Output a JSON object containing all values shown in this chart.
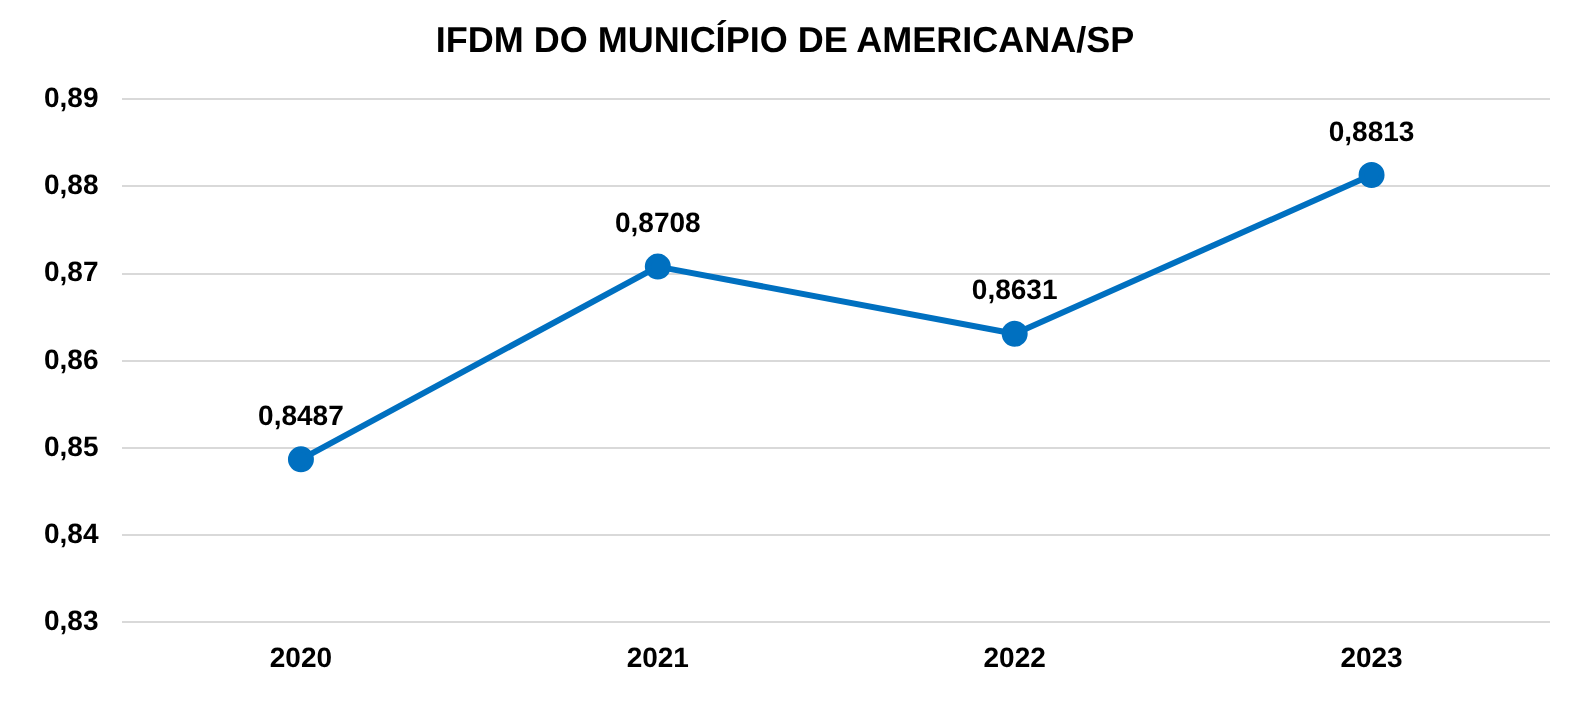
{
  "chart_data": {
    "type": "line",
    "title": "IFDM DO MUNICÍPIO DE AMERICANA/SP",
    "categories": [
      "2020",
      "2021",
      "2022",
      "2023"
    ],
    "series": [
      {
        "color": "#0070c0",
        "values": [
          0.8487,
          0.8708,
          0.8631,
          0.8813
        ],
        "value_labels": [
          "0,8487",
          "0,8708",
          "0,8631",
          "0,8813"
        ]
      }
    ],
    "ylim": [
      0.83,
      0.89
    ],
    "yticks": [
      {
        "value": 0.83,
        "label": "0,83"
      },
      {
        "value": 0.84,
        "label": "0,84"
      },
      {
        "value": 0.85,
        "label": "0,85"
      },
      {
        "value": 0.86,
        "label": "0,86"
      },
      {
        "value": 0.87,
        "label": "0,87"
      },
      {
        "value": 0.88,
        "label": "0,88"
      },
      {
        "value": 0.89,
        "label": "0,89"
      }
    ],
    "grid": "y",
    "legend": false,
    "marker": "circle",
    "line_style": "solid"
  }
}
